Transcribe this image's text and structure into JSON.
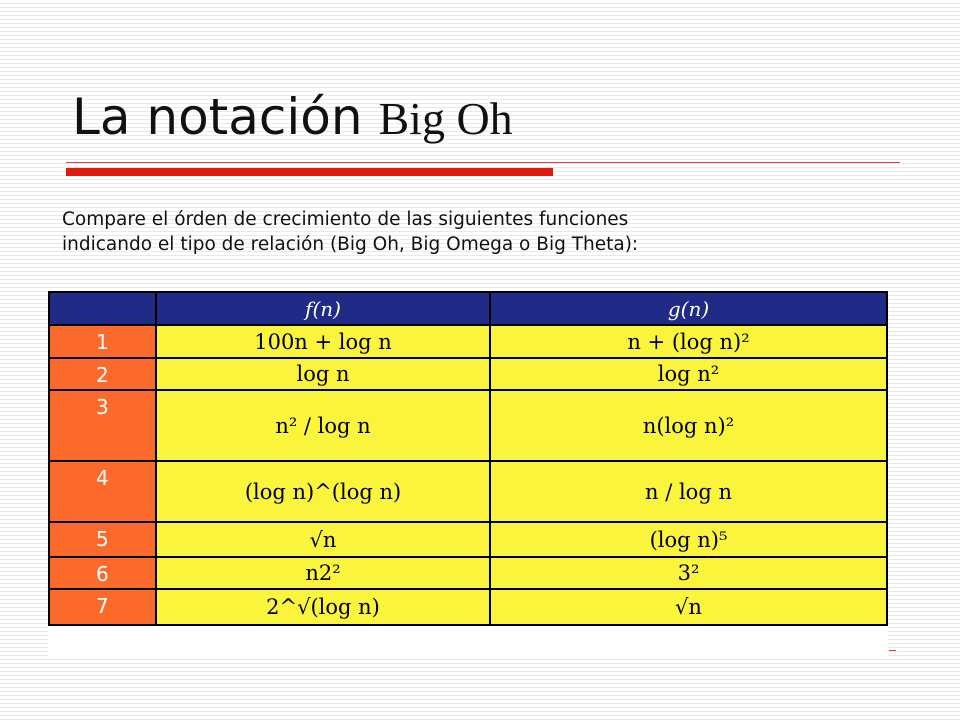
{
  "slide": {
    "title_prefix": "La notación ",
    "title_suffix": "Big Oh",
    "instructions": [
      "Compare el órden de crecimiento de las siguientes funciones",
      "indicando el tipo de relación (Big Oh, Big Omega o Big Theta):"
    ]
  },
  "table": {
    "headers": [
      "",
      "f(n)",
      "g(n)"
    ],
    "rows": [
      {
        "num": "1",
        "f": "100n + log n",
        "g": "n + (log n)²"
      },
      {
        "num": "2",
        "f": "log n",
        "g": "log n²"
      },
      {
        "num": "3",
        "f": "n² / log n",
        "g": "n(log n)²"
      },
      {
        "num": "4",
        "f": "(log n)^(log n)",
        "g": "n / log n"
      },
      {
        "num": "5",
        "f": "√n",
        "g": "(log n)⁵"
      },
      {
        "num": "6",
        "f": "n2²",
        "g": "3²"
      },
      {
        "num": "7",
        "f": "2^√(log n)",
        "g": "√n"
      }
    ],
    "colors": {
      "header": "#1f2b86",
      "index": "#fb6a2a",
      "cells": "#fbf43c"
    }
  }
}
